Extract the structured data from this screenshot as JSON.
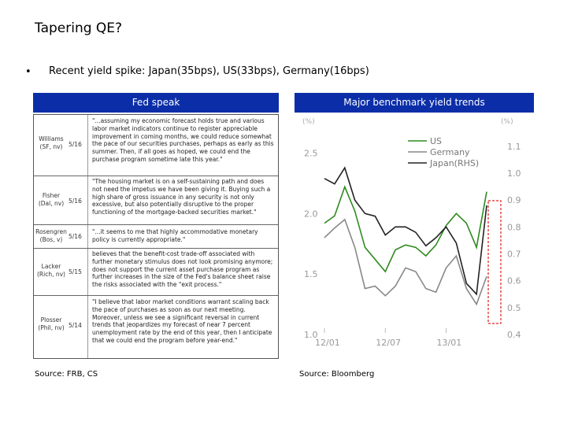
{
  "slide": {
    "title": "Tapering QE?",
    "bullet": "Recent yield spike: Japan(35bps), US(33bps), Germany(16bps)"
  },
  "fed_speak": {
    "header": "Fed speak",
    "rows": [
      {
        "name": "Williams\n(SF, nv)",
        "date": "5/16",
        "quote": "\"...assuming my economic forecast holds true and various labor market indicators continue to register appreciable improvement in coming months, we could reduce somewhat the pace of our securities purchases, perhaps as early as this summer. Then, if all goes as hoped, we could end the purchase program sometime late this year.\""
      },
      {
        "name": "Fisher\n(Dal, nv)",
        "date": "5/16",
        "quote": "\"The housing market is on a self-sustaining path and does not need the impetus we have been giving it. Buying such a high share of gross issuance in any security is not only excessive, but also potentially disruptive to the proper functioning of the mortgage-backed securities market.\""
      },
      {
        "name": "Rosengren\n(Bos, v)",
        "date": "5/16",
        "quote": "\"...it seems to me that highly accommodative monetary policy is currently appropriate.\""
      },
      {
        "name": "Lacker\n(Rich, nv)",
        "date": "5/15",
        "quote": "believes that the benefit-cost trade-off associated with further monetary stimulus does not look promising anymore; does not support the current asset purchase program as further increases in the size of the Fed's balance sheet raise the risks associated with the \"exit process.\""
      },
      {
        "name": "Plosser\n(Phil, nv)",
        "date": "5/14",
        "quote": "\"I believe that labor market conditions warrant scaling back the pace of purchases as soon as our next meeting. Moreover, unless we see a significant reversal in current trends that jeopardizes my forecast of near 7 percent unemployment rate by the end of this year, then I anticipate that we could end the program before year-end.\""
      }
    ],
    "source": "Source: FRB, CS"
  },
  "chart_panel": {
    "header": "Major benchmark yield trends",
    "left_unit": "(%)",
    "right_unit": "(%)",
    "source": "Source: Bloomberg"
  },
  "colors": {
    "header_bg": "#0b2ea8",
    "us": "#2e8b1e",
    "germany": "#888888",
    "japan": "#222222",
    "highlight": "#e02020"
  },
  "chart_data": {
    "type": "line",
    "x_ticks": [
      "12/01",
      "12/07",
      "13/01"
    ],
    "y_left": {
      "ticks": [
        "1.0",
        "1.5",
        "2.0",
        "2.5"
      ],
      "range": [
        1.0,
        2.6
      ]
    },
    "y_right": {
      "ticks": [
        "0.4",
        "0.5",
        "0.6",
        "0.7",
        "0.8",
        "0.9",
        "1.0",
        "1.1"
      ],
      "range": [
        0.4,
        1.12
      ]
    },
    "x": [
      "12/01",
      "12/02",
      "12/03",
      "12/04",
      "12/05",
      "12/06",
      "12/07",
      "12/08",
      "12/09",
      "12/10",
      "12/11",
      "12/12",
      "13/01",
      "13/02",
      "13/03",
      "13/04",
      "13/05"
    ],
    "series": [
      {
        "name": "US",
        "axis": "left",
        "values": [
          1.92,
          1.98,
          2.22,
          2.02,
          1.72,
          1.62,
          1.52,
          1.7,
          1.74,
          1.72,
          1.65,
          1.74,
          1.9,
          2.0,
          1.92,
          1.72,
          2.18
        ]
      },
      {
        "name": "Germany",
        "axis": "left",
        "values": [
          1.8,
          1.88,
          1.95,
          1.72,
          1.38,
          1.4,
          1.32,
          1.4,
          1.55,
          1.52,
          1.38,
          1.35,
          1.55,
          1.65,
          1.38,
          1.25,
          1.48
        ]
      },
      {
        "name": "Japan(RHS)",
        "axis": "right",
        "values": [
          0.98,
          0.96,
          1.02,
          0.9,
          0.85,
          0.84,
          0.77,
          0.8,
          0.8,
          0.78,
          0.73,
          0.76,
          0.8,
          0.74,
          0.59,
          0.55,
          0.88
        ]
      }
    ]
  }
}
